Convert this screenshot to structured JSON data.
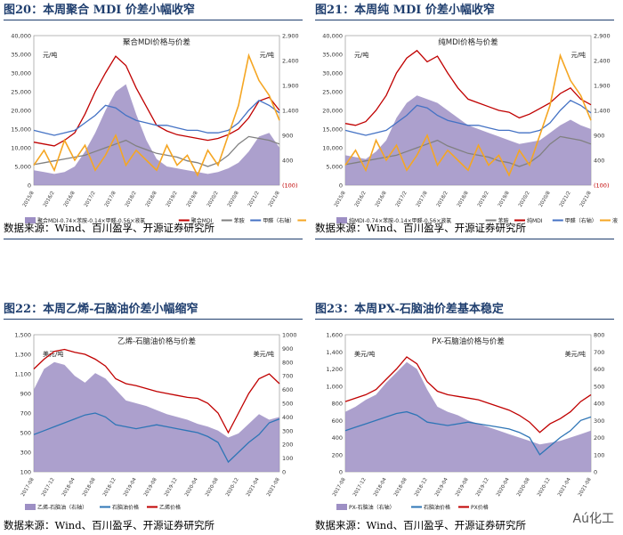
{
  "charts": [
    {
      "header": "图20：本周聚合 MDI 价差小幅收窄",
      "source": "数据来源：Wind、百川盈孚、开源证券研究所",
      "chart_data": {
        "type": "area+line",
        "title": "聚合MDI价格与价差",
        "left_unit": "元/吨",
        "right_unit": "元/吨",
        "left_ticks": [
          "40,000",
          "35,000",
          "30,000",
          "25,000",
          "20,000",
          "15,000",
          "10,000",
          "5,000",
          "0"
        ],
        "right_ticks": [
          "2,900",
          "2,400",
          "1,900",
          "1,400",
          "900",
          "400",
          "(100)"
        ],
        "xticks": [
          "2015/8",
          "2016/2",
          "2016/8",
          "2017/2",
          "2017/8",
          "2018/2",
          "2018/8",
          "2019/2",
          "2019/8",
          "2020/2",
          "2020/8",
          "2021/2",
          "2021/8"
        ],
        "ylim_left": [
          0,
          40000
        ],
        "ylim_right": [
          -100,
          2900
        ],
        "legend": [
          "聚合MDI-0.74×苯胺-0.14×甲醛-0.56×液氯",
          "聚合MDI",
          "苯胺",
          "甲醛（右轴）",
          "液氯（右轴）"
        ],
        "series": [
          {
            "name": "聚合MDI-0.74×苯胺-0.14×甲醛-0.56×液氯",
            "style": "area",
            "color": "#9d8fc4",
            "values": [
              4000,
              3500,
              3000,
              3500,
              5000,
              9000,
              14000,
              20000,
              25000,
              27000,
              19000,
              12000,
              7000,
              5000,
              4500,
              4000,
              3500,
              3000,
              3500,
              4500,
              6000,
              9000,
              13000,
              14000,
              10000
            ]
          },
          {
            "name": "聚合MDI",
            "style": "line",
            "color": "#c00000",
            "values": [
              11500,
              11000,
              10500,
              12000,
              14000,
              19000,
              25000,
              30000,
              34500,
              32000,
              26000,
              21000,
              16000,
              14500,
              13500,
              13000,
              12500,
              12000,
              12500,
              13500,
              15000,
              18000,
              22500,
              23500,
              20000
            ]
          },
          {
            "name": "苯胺",
            "style": "line",
            "color": "#808080",
            "values": [
              5500,
              6000,
              6500,
              7000,
              7500,
              8000,
              9000,
              10000,
              11000,
              12000,
              10500,
              9500,
              8500,
              8000,
              7500,
              6500,
              6000,
              5000,
              6000,
              8000,
              11000,
              13000,
              12500,
              12000,
              11000
            ]
          },
          {
            "name": "甲醛（右轴）",
            "style": "line",
            "color": "#4472c4",
            "axis": "right",
            "values": [
              1000,
              950,
              900,
              950,
              1000,
              1150,
              1300,
              1500,
              1450,
              1300,
              1200,
              1150,
              1100,
              1100,
              1050,
              1000,
              1000,
              950,
              950,
              1000,
              1150,
              1400,
              1600,
              1500,
              1350
            ]
          },
          {
            "name": "液氯（右轴）",
            "style": "line",
            "color": "#f5a623",
            "axis": "right",
            "values": [
              300,
              600,
              200,
              800,
              400,
              700,
              200,
              500,
              900,
              300,
              600,
              400,
              200,
              700,
              300,
              500,
              100,
              600,
              300,
              900,
              1500,
              2500,
              2000,
              1700,
              1200
            ]
          }
        ]
      }
    },
    {
      "header": "图21：本周纯 MDI 价差小幅收窄",
      "source": "数据来源：Wind、百川盈孚、开源证券研究所",
      "chart_data": {
        "type": "area+line",
        "title": "纯MDI价格与价差",
        "left_unit": "元/吨",
        "right_unit": "元/吨",
        "left_ticks": [
          "40,000",
          "35,000",
          "30,000",
          "25,000",
          "20,000",
          "15,000",
          "10,000",
          "5,000",
          "0"
        ],
        "right_ticks": [
          "2,900",
          "2,400",
          "1,900",
          "1,400",
          "900",
          "400",
          "(100)"
        ],
        "xticks": [
          "2015/8",
          "2016/2",
          "2016/8",
          "2017/2",
          "2017/8",
          "2018/2",
          "2018/8",
          "2019/2",
          "2019/8",
          "2020/2",
          "2020/8",
          "2021/2",
          "2021/8"
        ],
        "ylim_left": [
          0,
          40000
        ],
        "ylim_right": [
          -100,
          2900
        ],
        "legend": [
          "纯MDI-0.74×苯胺-0.14×甲醛-0.56×液氯",
          "苯胺",
          "纯MDI",
          "甲醛（右轴）",
          "液氯（右轴）"
        ],
        "series": [
          {
            "name": "纯MDI-0.74×苯胺-0.14×甲醛-0.56×液氯",
            "style": "area",
            "color": "#9d8fc4",
            "values": [
              8000,
              7500,
              7000,
              9000,
              12000,
              18000,
              22000,
              24000,
              23000,
              22000,
              20000,
              18000,
              16000,
              15000,
              14000,
              13000,
              12000,
              11000,
              11500,
              12000,
              14000,
              16000,
              17500,
              16000,
              15000
            ]
          },
          {
            "name": "苯胺",
            "style": "line",
            "color": "#808080",
            "values": [
              5500,
              6000,
              6500,
              7000,
              7500,
              8000,
              9000,
              10000,
              11000,
              12000,
              10500,
              9500,
              8500,
              8000,
              7500,
              6500,
              6000,
              5000,
              6000,
              8000,
              11000,
              13000,
              12500,
              12000,
              11000
            ]
          },
          {
            "name": "纯MDI",
            "style": "line",
            "color": "#c00000",
            "values": [
              16500,
              16000,
              17000,
              20000,
              24000,
              30000,
              34000,
              36000,
              33000,
              34500,
              30000,
              26000,
              23000,
              22000,
              21000,
              20000,
              19500,
              18000,
              19000,
              20500,
              22000,
              24500,
              26000,
              23000,
              21500
            ]
          },
          {
            "name": "甲醛（右轴）",
            "style": "line",
            "color": "#4472c4",
            "axis": "right",
            "values": [
              1000,
              950,
              900,
              950,
              1000,
              1150,
              1300,
              1500,
              1450,
              1300,
              1200,
              1150,
              1100,
              1100,
              1050,
              1000,
              1000,
              950,
              950,
              1000,
              1150,
              1400,
              1600,
              1500,
              1350
            ]
          },
          {
            "name": "液氯（右轴）",
            "style": "line",
            "color": "#f5a623",
            "axis": "right",
            "values": [
              300,
              600,
              200,
              800,
              400,
              700,
              200,
              500,
              900,
              300,
              600,
              400,
              200,
              700,
              300,
              500,
              100,
              600,
              300,
              900,
              1500,
              2500,
              2000,
              1700,
              1200
            ]
          }
        ]
      }
    },
    {
      "header": "图22：本周乙烯-石脑油价差小幅缩窄",
      "source": "数据来源：Wind、百川盈孚、开源证券研究所",
      "chart_data": {
        "type": "area+line",
        "title": "乙烯-石脑油价格与价差",
        "left_unit": "美元/吨",
        "right_unit": "美元/吨",
        "left_ticks": [
          "1,500",
          "1,300",
          "1,100",
          "900",
          "700",
          "500",
          "300",
          "100"
        ],
        "right_ticks": [
          "1000",
          "900",
          "800",
          "700",
          "600",
          "500",
          "400",
          "300",
          "200",
          "100",
          "0"
        ],
        "xticks": [
          "2017-08",
          "2017-12",
          "2018-04",
          "2018-08",
          "2018-12",
          "2019-04",
          "2019-08",
          "2019-12",
          "2020-04",
          "2020-08",
          "2020-12",
          "2021-04",
          "2021-08"
        ],
        "ylim_left": [
          100,
          1500
        ],
        "ylim_right": [
          0,
          1000
        ],
        "legend": [
          "乙烯-石脑油（右轴）",
          "石脑油价格",
          "乙烯价格"
        ],
        "series": [
          {
            "name": "乙烯-石脑油（右轴）",
            "style": "area",
            "color": "#9d8fc4",
            "axis": "right",
            "values": [
              600,
              750,
              800,
              780,
              700,
              650,
              720,
              680,
              600,
              520,
              500,
              480,
              450,
              420,
              400,
              380,
              350,
              330,
              300,
              250,
              280,
              350,
              420,
              380,
              400
            ]
          },
          {
            "name": "石脑油价格",
            "style": "line",
            "color": "#2e75b6",
            "values": [
              480,
              520,
              560,
              600,
              640,
              680,
              700,
              660,
              580,
              560,
              540,
              560,
              580,
              560,
              540,
              520,
              500,
              460,
              400,
              200,
              300,
              400,
              480,
              600,
              640
            ]
          },
          {
            "name": "乙烯价格",
            "style": "line",
            "color": "#c00000",
            "values": [
              1150,
              1250,
              1330,
              1350,
              1320,
              1300,
              1250,
              1180,
              1050,
              1000,
              980,
              950,
              920,
              900,
              880,
              860,
              850,
              800,
              700,
              500,
              700,
              900,
              1050,
              1100,
              1000
            ]
          }
        ]
      }
    },
    {
      "header": "图23：本周PX-石脑油价差基本稳定",
      "source": "数据来源：Wind、百川盈孚、开源证券研究所",
      "chart_data": {
        "type": "area+line",
        "title": "PX-石脑油价格与价差",
        "left_unit": "美元/吨",
        "right_unit": "美元/吨",
        "left_ticks": [
          "1,600",
          "1,400",
          "1,200",
          "1,000",
          "800",
          "600",
          "400",
          "200",
          "0"
        ],
        "right_ticks": [
          "800",
          "700",
          "600",
          "500",
          "400",
          "300",
          "200",
          "100",
          "0"
        ],
        "xticks": [
          "2017-08",
          "2017-12",
          "2018-04",
          "2018-08",
          "2018-12",
          "2019-04",
          "2019-08",
          "2019-12",
          "2020-04",
          "2020-08",
          "2020-12",
          "2021-04",
          "2021-08"
        ],
        "ylim_left": [
          0,
          1600
        ],
        "ylim_right": [
          0,
          800
        ],
        "legend": [
          "PX-石脑油（右轴）",
          "石脑油价格",
          "PX价格"
        ],
        "series": [
          {
            "name": "PX-石脑油（右轴）",
            "style": "area",
            "color": "#9d8fc4",
            "axis": "right",
            "values": [
              350,
              380,
              420,
              450,
              520,
              580,
              640,
              600,
              480,
              380,
              350,
              330,
              300,
              280,
              260,
              240,
              220,
              200,
              180,
              160,
              170,
              180,
              200,
              220,
              240
            ]
          },
          {
            "name": "石脑油价格",
            "style": "line",
            "color": "#2e75b6",
            "values": [
              480,
              520,
              560,
              600,
              640,
              680,
              700,
              660,
              580,
              560,
              540,
              560,
              580,
              560,
              540,
              520,
              500,
              460,
              400,
              200,
              300,
              400,
              480,
              600,
              640
            ]
          },
          {
            "name": "PX价格",
            "style": "line",
            "color": "#c00000",
            "values": [
              820,
              860,
              900,
              960,
              1080,
              1200,
              1340,
              1260,
              1050,
              940,
              900,
              880,
              860,
              840,
              800,
              760,
              720,
              660,
              580,
              460,
              560,
              620,
              700,
              820,
              900
            ]
          }
        ]
      }
    }
  ],
  "watermark": "Aú化工"
}
